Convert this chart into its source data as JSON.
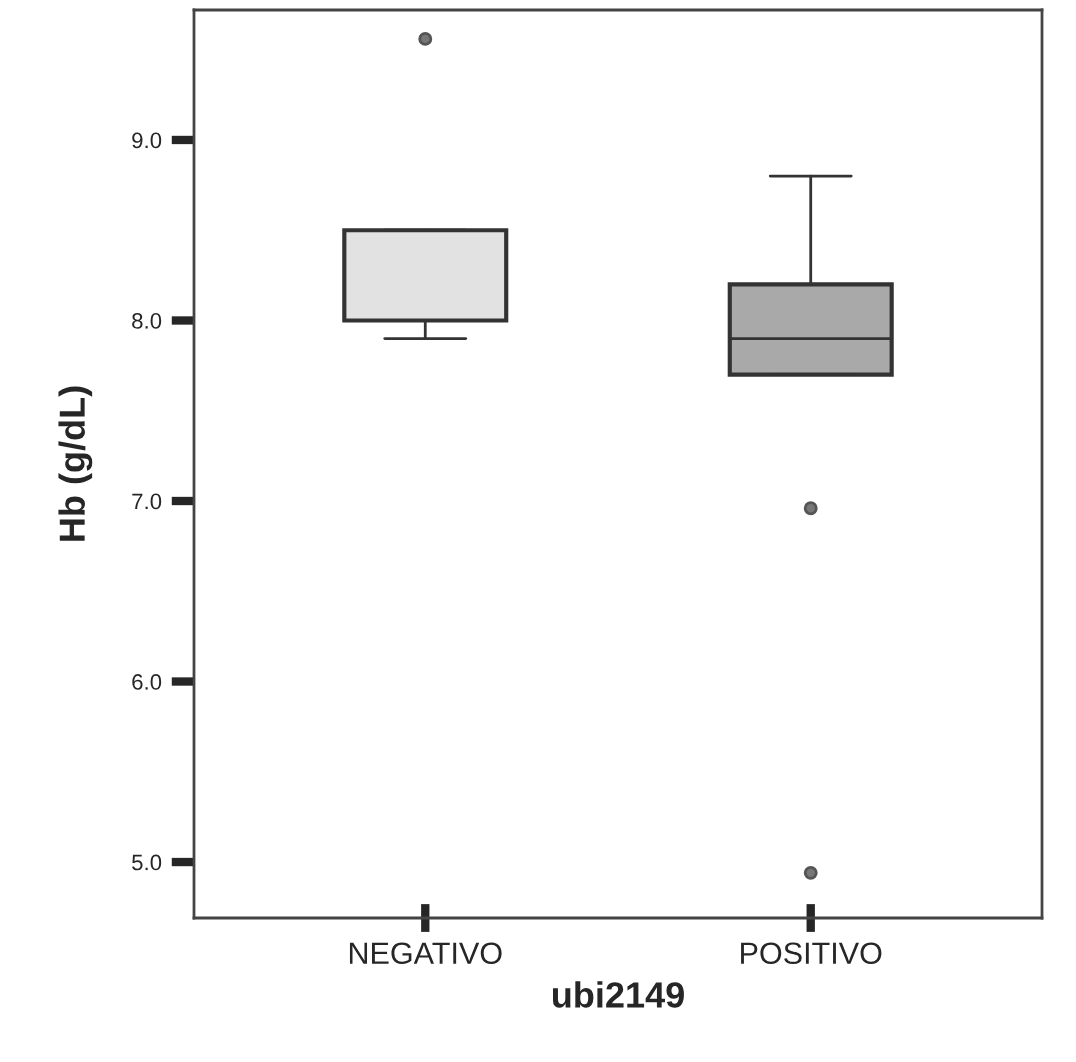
{
  "chart_data": {
    "type": "box",
    "xlabel": "ubi2149",
    "ylabel": "Hb (g/dL)",
    "categories": [
      "NEGATIVO",
      "POSITIVO"
    ],
    "colors": [
      "#e2e2e2",
      "#a9a9a9"
    ],
    "boxes": [
      {
        "low": 7.9,
        "q1": 8.0,
        "median": 8.0,
        "q3": 8.5,
        "high": 8.5,
        "outliers": [
          9.56
        ]
      },
      {
        "low": 7.7,
        "q1": 7.7,
        "median": 7.9,
        "q3": 8.2,
        "high": 8.8,
        "outliers": [
          6.96,
          4.94
        ]
      }
    ],
    "ylim": [
      4.69,
      9.72
    ],
    "yticks": [
      {
        "value": 5,
        "label": "5.0"
      },
      {
        "value": 6,
        "label": "6.0"
      },
      {
        "value": 7,
        "label": "7.0"
      },
      {
        "value": 8,
        "label": "8.0"
      },
      {
        "value": 9,
        "label": "9.0"
      }
    ],
    "grid": false,
    "legend": false
  }
}
